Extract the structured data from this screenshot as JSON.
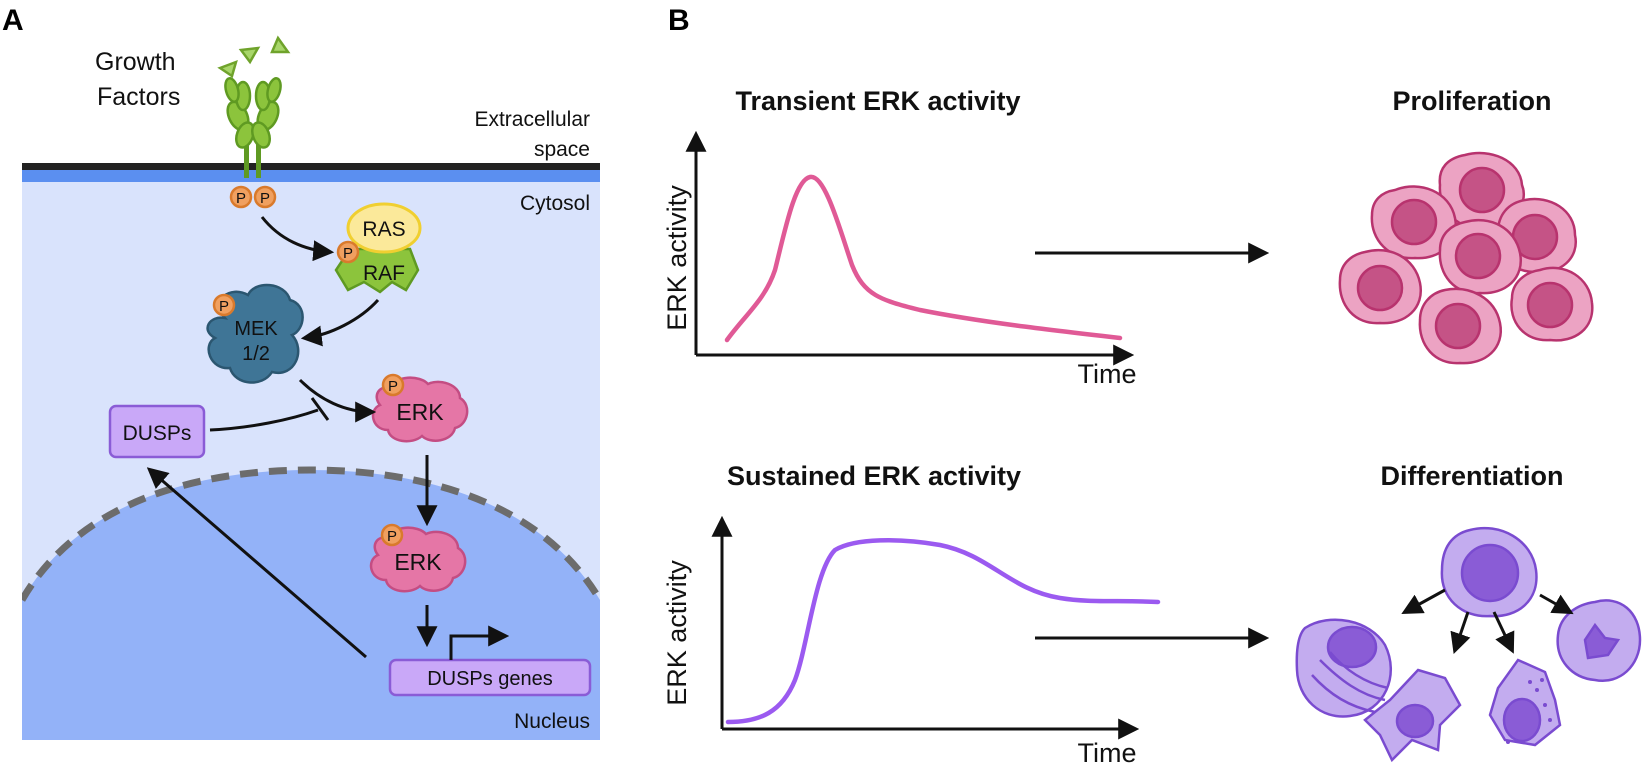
{
  "panel_a": {
    "letter": "A",
    "growth_factors": [
      "Growth",
      "Factors"
    ],
    "extracellular": [
      "Extracellular",
      "space"
    ],
    "cytosol": "Cytosol",
    "nucleus": "Nucleus",
    "phospho": "P",
    "ras": "RAS",
    "raf": "RAF",
    "mek": [
      "MEK",
      "1/2"
    ],
    "erk_cytosol": "ERK",
    "erk_nucleus": "ERK",
    "dusps": "DUSPs",
    "dusps_genes": "DUSPs genes",
    "colors": {
      "cytosol": "#d9e3fc",
      "nucleus": "#93b2f8",
      "membrane": "#222222",
      "membrane_inner": "#5b8ff0",
      "receptor": "#8cc43c",
      "phospho": "#f0a060",
      "ras": "#fbe99a",
      "raf": "#8cc43c",
      "mek": "#3f7596",
      "erk": "#e576a6",
      "dusp": "#c9a8f8"
    }
  },
  "panel_b": {
    "letter": "B",
    "transient_title": "Transient  ERK activity",
    "sustained_title": "Sustained  ERK activity",
    "proliferation": "Proliferation",
    "differentiation": "Differentiation",
    "ylabel": "ERK activity",
    "xlabel": "Time",
    "colors": {
      "transient": "#e05a96",
      "sustained": "#9b5af0",
      "prolif_cell": "#eca3c3",
      "prolif_nucleus": "#c55386",
      "diff_cell": "#c3acef",
      "diff_nucleus": "#8a5cd6"
    }
  }
}
